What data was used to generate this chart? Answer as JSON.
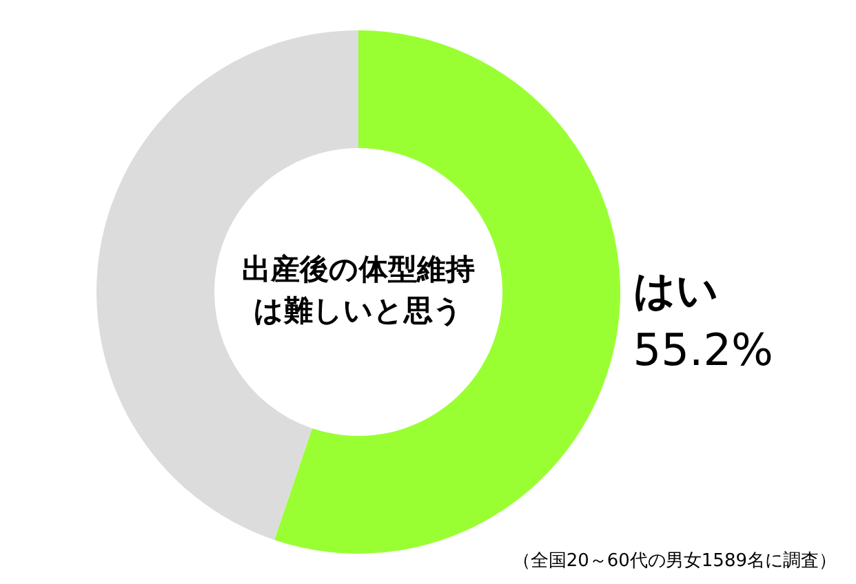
{
  "chart_data": {
    "type": "donut",
    "title": "出産後の体型維持は難しいと思う",
    "categories": [
      "はい",
      null
    ],
    "values": [
      55.2,
      44.8
    ],
    "colors": [
      "#99ff33",
      "#dcdcdc"
    ],
    "value_labels": [
      "55.2%",
      null
    ],
    "legend": false,
    "annotations": [
      "（全国20～60代の男女1589名に調査）"
    ]
  }
}
